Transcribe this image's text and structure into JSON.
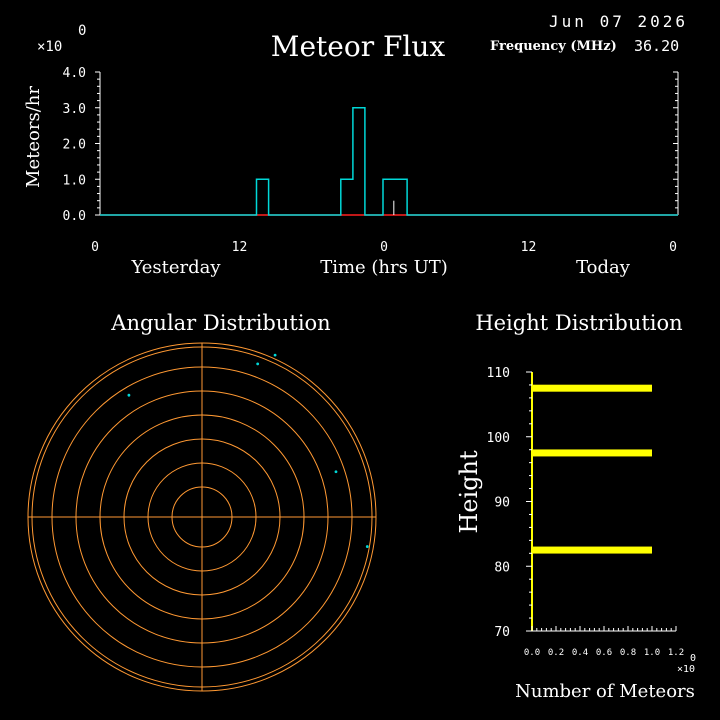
{
  "header": {
    "title": "Meteor Flux",
    "date": "Jun 07 2026",
    "frequency_label": "Frequency (MHz)",
    "frequency_value": "36.20",
    "exp_x": "×10",
    "exp_power": "0"
  },
  "colors": {
    "background": "#000000",
    "axis": "#ffffff",
    "flux_line": "#00d8d8",
    "zero_line": "#ff2020",
    "polar_rings": "#ff9933",
    "height_bars": "#ffff00",
    "dots": "#00d8d8"
  },
  "chart_data": [
    {
      "type": "line",
      "title": "Meteor Flux",
      "xlabel": "Time (hrs UT)",
      "ylabel": "Meteors/hr",
      "x_day_labels": [
        "Yesterday",
        "Today"
      ],
      "x_ticks": [
        "0",
        "12",
        "0",
        "12",
        "0"
      ],
      "y_ticks": [
        "0.0",
        "1.0",
        "2.0",
        "3.0",
        "4.0"
      ],
      "ylim": [
        0,
        4
      ],
      "xlim": [
        0,
        48
      ],
      "step": true,
      "points": [
        [
          0,
          0
        ],
        [
          13,
          0
        ],
        [
          13,
          1
        ],
        [
          14,
          1
        ],
        [
          14,
          0
        ],
        [
          20,
          0
        ],
        [
          20,
          1
        ],
        [
          21,
          1
        ],
        [
          21,
          3
        ],
        [
          22,
          3
        ],
        [
          22,
          0
        ],
        [
          23.5,
          0
        ],
        [
          23.5,
          1
        ],
        [
          25.5,
          1
        ],
        [
          25.5,
          0
        ],
        [
          48,
          0
        ]
      ],
      "marker": [
        24.4,
        0.4
      ]
    },
    {
      "type": "scatter",
      "title": "Angular Distribution",
      "rings": 7,
      "points": [
        [
          0.42,
          0.93
        ],
        [
          0.32,
          0.88
        ],
        [
          -0.42,
          0.7
        ],
        [
          0.77,
          0.26
        ],
        [
          0.95,
          -0.17
        ]
      ]
    },
    {
      "type": "bar",
      "orientation": "horizontal",
      "title": "Height Distribution",
      "xlabel": "Number of Meteors",
      "ylabel": "Height",
      "y_ticks": [
        "70",
        "80",
        "90",
        "100",
        "110"
      ],
      "ylim": [
        70,
        110
      ],
      "x_ticks": [
        "0.0",
        "0.2",
        "0.4",
        "0.6",
        "0.8",
        "1.0",
        "1.2"
      ],
      "xlim": [
        0,
        1.2
      ],
      "x_exp_x": "×10",
      "x_exp_power": "0",
      "bars": [
        {
          "height": 107.5,
          "value": 1.0
        },
        {
          "height": 97.5,
          "value": 1.0
        },
        {
          "height": 82.5,
          "value": 1.0
        }
      ]
    }
  ]
}
